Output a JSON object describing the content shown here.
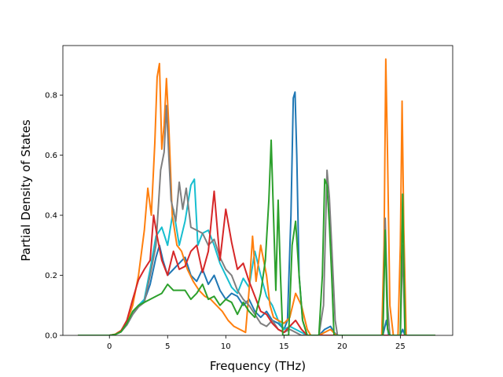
{
  "chart_data": {
    "type": "line",
    "title": "",
    "xlabel": "Frequency (THz)",
    "ylabel": "Partial Density of States",
    "xlim": [
      -4,
      29.5
    ],
    "ylim": [
      0.0,
      0.965
    ],
    "xticks": [
      0,
      5,
      10,
      15,
      20,
      25
    ],
    "xtick_labels": [
      "0",
      "5",
      "10",
      "15",
      "20",
      "25"
    ],
    "yticks": [
      0.0,
      0.2,
      0.4,
      0.6,
      0.8
    ],
    "ytick_labels": [
      "0.0",
      "0.2",
      "0.4",
      "0.6",
      "0.8"
    ],
    "grid": false,
    "legend": "none",
    "series": [
      {
        "color": "#1f77b4",
        "points": [
          [
            -2.7,
            0
          ],
          [
            0,
            0
          ],
          [
            0.5,
            0.003
          ],
          [
            1,
            0.012
          ],
          [
            1.5,
            0.035
          ],
          [
            2,
            0.07
          ],
          [
            2.5,
            0.095
          ],
          [
            3,
            0.115
          ],
          [
            3.5,
            0.17
          ],
          [
            4,
            0.26
          ],
          [
            4.3,
            0.3
          ],
          [
            4.6,
            0.25
          ],
          [
            5,
            0.2
          ],
          [
            5.5,
            0.22
          ],
          [
            6,
            0.24
          ],
          [
            6.5,
            0.26
          ],
          [
            7,
            0.2
          ],
          [
            7.5,
            0.18
          ],
          [
            8,
            0.22
          ],
          [
            8.5,
            0.17
          ],
          [
            9,
            0.2
          ],
          [
            9.5,
            0.15
          ],
          [
            10,
            0.12
          ],
          [
            10.5,
            0.14
          ],
          [
            11,
            0.13
          ],
          [
            11.5,
            0.1
          ],
          [
            12,
            0.12
          ],
          [
            12.5,
            0.08
          ],
          [
            13,
            0.06
          ],
          [
            13.5,
            0.08
          ],
          [
            14,
            0.05
          ],
          [
            14.5,
            0.04
          ],
          [
            15,
            0.02
          ],
          [
            15.3,
            0.05
          ],
          [
            15.6,
            0.4
          ],
          [
            15.8,
            0.79
          ],
          [
            15.95,
            0.81
          ],
          [
            16.1,
            0.6
          ],
          [
            16.3,
            0.2
          ],
          [
            16.6,
            0.05
          ],
          [
            17,
            0
          ],
          [
            18,
            0
          ],
          [
            18.5,
            0.02
          ],
          [
            19,
            0.03
          ],
          [
            19.3,
            0.01
          ],
          [
            19.6,
            0
          ],
          [
            23.5,
            0
          ],
          [
            23.8,
            0.05
          ],
          [
            24,
            0
          ],
          [
            25,
            0
          ],
          [
            25.2,
            0.02
          ],
          [
            25.4,
            0
          ],
          [
            28,
            0
          ]
        ]
      },
      {
        "color": "#17becf",
        "points": [
          [
            -2.7,
            0
          ],
          [
            0,
            0
          ],
          [
            0.5,
            0.003
          ],
          [
            1,
            0.014
          ],
          [
            1.5,
            0.04
          ],
          [
            2,
            0.075
          ],
          [
            2.5,
            0.1
          ],
          [
            3,
            0.12
          ],
          [
            3.5,
            0.22
          ],
          [
            4,
            0.33
          ],
          [
            4.5,
            0.36
          ],
          [
            5,
            0.3
          ],
          [
            5.5,
            0.42
          ],
          [
            6,
            0.3
          ],
          [
            6.5,
            0.38
          ],
          [
            7,
            0.5
          ],
          [
            7.3,
            0.52
          ],
          [
            7.6,
            0.3
          ],
          [
            8,
            0.34
          ],
          [
            8.5,
            0.35
          ],
          [
            9,
            0.3
          ],
          [
            9.5,
            0.24
          ],
          [
            10,
            0.2
          ],
          [
            10.5,
            0.16
          ],
          [
            11,
            0.14
          ],
          [
            11.5,
            0.19
          ],
          [
            12,
            0.16
          ],
          [
            12.5,
            0.28
          ],
          [
            13,
            0.2
          ],
          [
            13.5,
            0.13
          ],
          [
            14,
            0.1
          ],
          [
            14.5,
            0.05
          ],
          [
            15,
            0.02
          ],
          [
            15.5,
            0.03
          ],
          [
            16,
            0.02
          ],
          [
            16.5,
            0.01
          ],
          [
            17,
            0
          ],
          [
            28,
            0
          ]
        ]
      },
      {
        "color": "#ff7f0e",
        "points": [
          [
            -2.7,
            0
          ],
          [
            0,
            0
          ],
          [
            0.5,
            0.004
          ],
          [
            1,
            0.016
          ],
          [
            1.5,
            0.045
          ],
          [
            2,
            0.1
          ],
          [
            2.5,
            0.2
          ],
          [
            3,
            0.35
          ],
          [
            3.3,
            0.49
          ],
          [
            3.6,
            0.4
          ],
          [
            3.9,
            0.64
          ],
          [
            4.1,
            0.86
          ],
          [
            4.3,
            0.905
          ],
          [
            4.5,
            0.62
          ],
          [
            4.7,
            0.7
          ],
          [
            4.9,
            0.855
          ],
          [
            5.1,
            0.7
          ],
          [
            5.4,
            0.4
          ],
          [
            5.8,
            0.3
          ],
          [
            6.2,
            0.28
          ],
          [
            6.7,
            0.22
          ],
          [
            7.2,
            0.18
          ],
          [
            7.7,
            0.15
          ],
          [
            8.2,
            0.13
          ],
          [
            8.7,
            0.12
          ],
          [
            9.2,
            0.1
          ],
          [
            9.7,
            0.08
          ],
          [
            10.2,
            0.05
          ],
          [
            10.7,
            0.03
          ],
          [
            11.2,
            0.02
          ],
          [
            11.7,
            0.01
          ],
          [
            12,
            0.15
          ],
          [
            12.3,
            0.33
          ],
          [
            12.6,
            0.18
          ],
          [
            13,
            0.3
          ],
          [
            13.5,
            0.2
          ],
          [
            13.8,
            0.1
          ],
          [
            14.1,
            0.06
          ],
          [
            14.5,
            0.05
          ],
          [
            15,
            0.04
          ],
          [
            15.5,
            0.06
          ],
          [
            16,
            0.14
          ],
          [
            16.5,
            0.1
          ],
          [
            17,
            0.02
          ],
          [
            17.3,
            0
          ],
          [
            18,
            0
          ],
          [
            18.5,
            0.01
          ],
          [
            19,
            0.02
          ],
          [
            19.5,
            0
          ],
          [
            23.4,
            0
          ],
          [
            23.6,
            0.3
          ],
          [
            23.75,
            0.92
          ],
          [
            23.9,
            0.6
          ],
          [
            24.1,
            0.1
          ],
          [
            24.4,
            0
          ],
          [
            24.8,
            0
          ],
          [
            25,
            0.3
          ],
          [
            25.15,
            0.78
          ],
          [
            25.3,
            0.35
          ],
          [
            25.5,
            0
          ],
          [
            28,
            0
          ]
        ]
      },
      {
        "color": "#7f7f7f",
        "points": [
          [
            -2.7,
            0
          ],
          [
            0,
            0
          ],
          [
            0.5,
            0.003
          ],
          [
            1,
            0.012
          ],
          [
            1.5,
            0.035
          ],
          [
            2,
            0.07
          ],
          [
            2.5,
            0.095
          ],
          [
            3,
            0.11
          ],
          [
            3.5,
            0.2
          ],
          [
            4,
            0.3
          ],
          [
            4.4,
            0.55
          ],
          [
            4.7,
            0.61
          ],
          [
            4.9,
            0.765
          ],
          [
            5.1,
            0.6
          ],
          [
            5.3,
            0.45
          ],
          [
            5.7,
            0.38
          ],
          [
            6,
            0.51
          ],
          [
            6.3,
            0.42
          ],
          [
            6.6,
            0.49
          ],
          [
            7,
            0.36
          ],
          [
            7.5,
            0.35
          ],
          [
            8,
            0.34
          ],
          [
            8.5,
            0.3
          ],
          [
            9,
            0.32
          ],
          [
            9.5,
            0.26
          ],
          [
            10,
            0.22
          ],
          [
            10.5,
            0.2
          ],
          [
            11,
            0.15
          ],
          [
            11.5,
            0.12
          ],
          [
            12,
            0.1
          ],
          [
            12.5,
            0.07
          ],
          [
            13,
            0.04
          ],
          [
            13.5,
            0.03
          ],
          [
            14,
            0.05
          ],
          [
            14.5,
            0.02
          ],
          [
            15,
            0.01
          ],
          [
            15.5,
            0.02
          ],
          [
            16,
            0.01
          ],
          [
            16.5,
            0
          ],
          [
            18,
            0
          ],
          [
            18.4,
            0.1
          ],
          [
            18.7,
            0.55
          ],
          [
            18.9,
            0.46
          ],
          [
            19.1,
            0.3
          ],
          [
            19.4,
            0.05
          ],
          [
            19.6,
            0
          ],
          [
            23.5,
            0
          ],
          [
            23.7,
            0.39
          ],
          [
            23.9,
            0.1
          ],
          [
            24.1,
            0
          ],
          [
            25,
            0
          ],
          [
            25.2,
            0.3
          ],
          [
            25.4,
            0
          ],
          [
            28,
            0
          ]
        ]
      },
      {
        "color": "#d62728",
        "points": [
          [
            -2.7,
            0
          ],
          [
            0,
            0
          ],
          [
            0.5,
            0.003
          ],
          [
            1,
            0.015
          ],
          [
            1.5,
            0.05
          ],
          [
            2,
            0.12
          ],
          [
            2.5,
            0.185
          ],
          [
            3,
            0.22
          ],
          [
            3.5,
            0.25
          ],
          [
            3.8,
            0.4
          ],
          [
            4.1,
            0.33
          ],
          [
            4.5,
            0.25
          ],
          [
            5,
            0.2
          ],
          [
            5.5,
            0.28
          ],
          [
            6,
            0.22
          ],
          [
            6.5,
            0.23
          ],
          [
            7,
            0.28
          ],
          [
            7.5,
            0.3
          ],
          [
            8,
            0.21
          ],
          [
            8.5,
            0.28
          ],
          [
            9,
            0.48
          ],
          [
            9.5,
            0.25
          ],
          [
            10,
            0.42
          ],
          [
            10.5,
            0.31
          ],
          [
            11,
            0.22
          ],
          [
            11.5,
            0.24
          ],
          [
            12,
            0.18
          ],
          [
            12.5,
            0.13
          ],
          [
            13,
            0.08
          ],
          [
            13.5,
            0.07
          ],
          [
            14,
            0.04
          ],
          [
            14.5,
            0.02
          ],
          [
            15,
            0.01
          ],
          [
            15.5,
            0.03
          ],
          [
            16,
            0.05
          ],
          [
            16.5,
            0.02
          ],
          [
            17,
            0
          ],
          [
            28,
            0
          ]
        ]
      },
      {
        "color": "#2ca02c",
        "points": [
          [
            -2.7,
            0
          ],
          [
            0,
            0
          ],
          [
            0.5,
            0.003
          ],
          [
            1,
            0.012
          ],
          [
            1.5,
            0.04
          ],
          [
            2,
            0.08
          ],
          [
            2.5,
            0.1
          ],
          [
            3,
            0.11
          ],
          [
            3.5,
            0.12
          ],
          [
            4,
            0.13
          ],
          [
            4.5,
            0.14
          ],
          [
            5,
            0.17
          ],
          [
            5.5,
            0.15
          ],
          [
            6,
            0.15
          ],
          [
            6.5,
            0.15
          ],
          [
            7,
            0.12
          ],
          [
            7.5,
            0.14
          ],
          [
            8,
            0.17
          ],
          [
            8.5,
            0.12
          ],
          [
            9,
            0.13
          ],
          [
            9.5,
            0.1
          ],
          [
            10,
            0.12
          ],
          [
            10.5,
            0.11
          ],
          [
            11,
            0.07
          ],
          [
            11.5,
            0.11
          ],
          [
            12,
            0.08
          ],
          [
            12.5,
            0.06
          ],
          [
            13,
            0.14
          ],
          [
            13.4,
            0.25
          ],
          [
            13.7,
            0.45
          ],
          [
            13.9,
            0.65
          ],
          [
            14.1,
            0.4
          ],
          [
            14.3,
            0.15
          ],
          [
            14.5,
            0.45
          ],
          [
            14.7,
            0.2
          ],
          [
            14.9,
            0
          ],
          [
            15.4,
            0
          ],
          [
            15.7,
            0.3
          ],
          [
            16,
            0.38
          ],
          [
            16.3,
            0.2
          ],
          [
            16.6,
            0.05
          ],
          [
            17,
            0
          ],
          [
            18,
            0
          ],
          [
            18.3,
            0.2
          ],
          [
            18.5,
            0.52
          ],
          [
            18.7,
            0.5
          ],
          [
            18.9,
            0.37
          ],
          [
            19.1,
            0.2
          ],
          [
            19.3,
            0
          ],
          [
            23.5,
            0
          ],
          [
            23.7,
            0.35
          ],
          [
            23.9,
            0.02
          ],
          [
            24.1,
            0
          ],
          [
            25,
            0
          ],
          [
            25.2,
            0.47
          ],
          [
            25.4,
            0
          ],
          [
            28,
            0
          ]
        ]
      }
    ]
  }
}
